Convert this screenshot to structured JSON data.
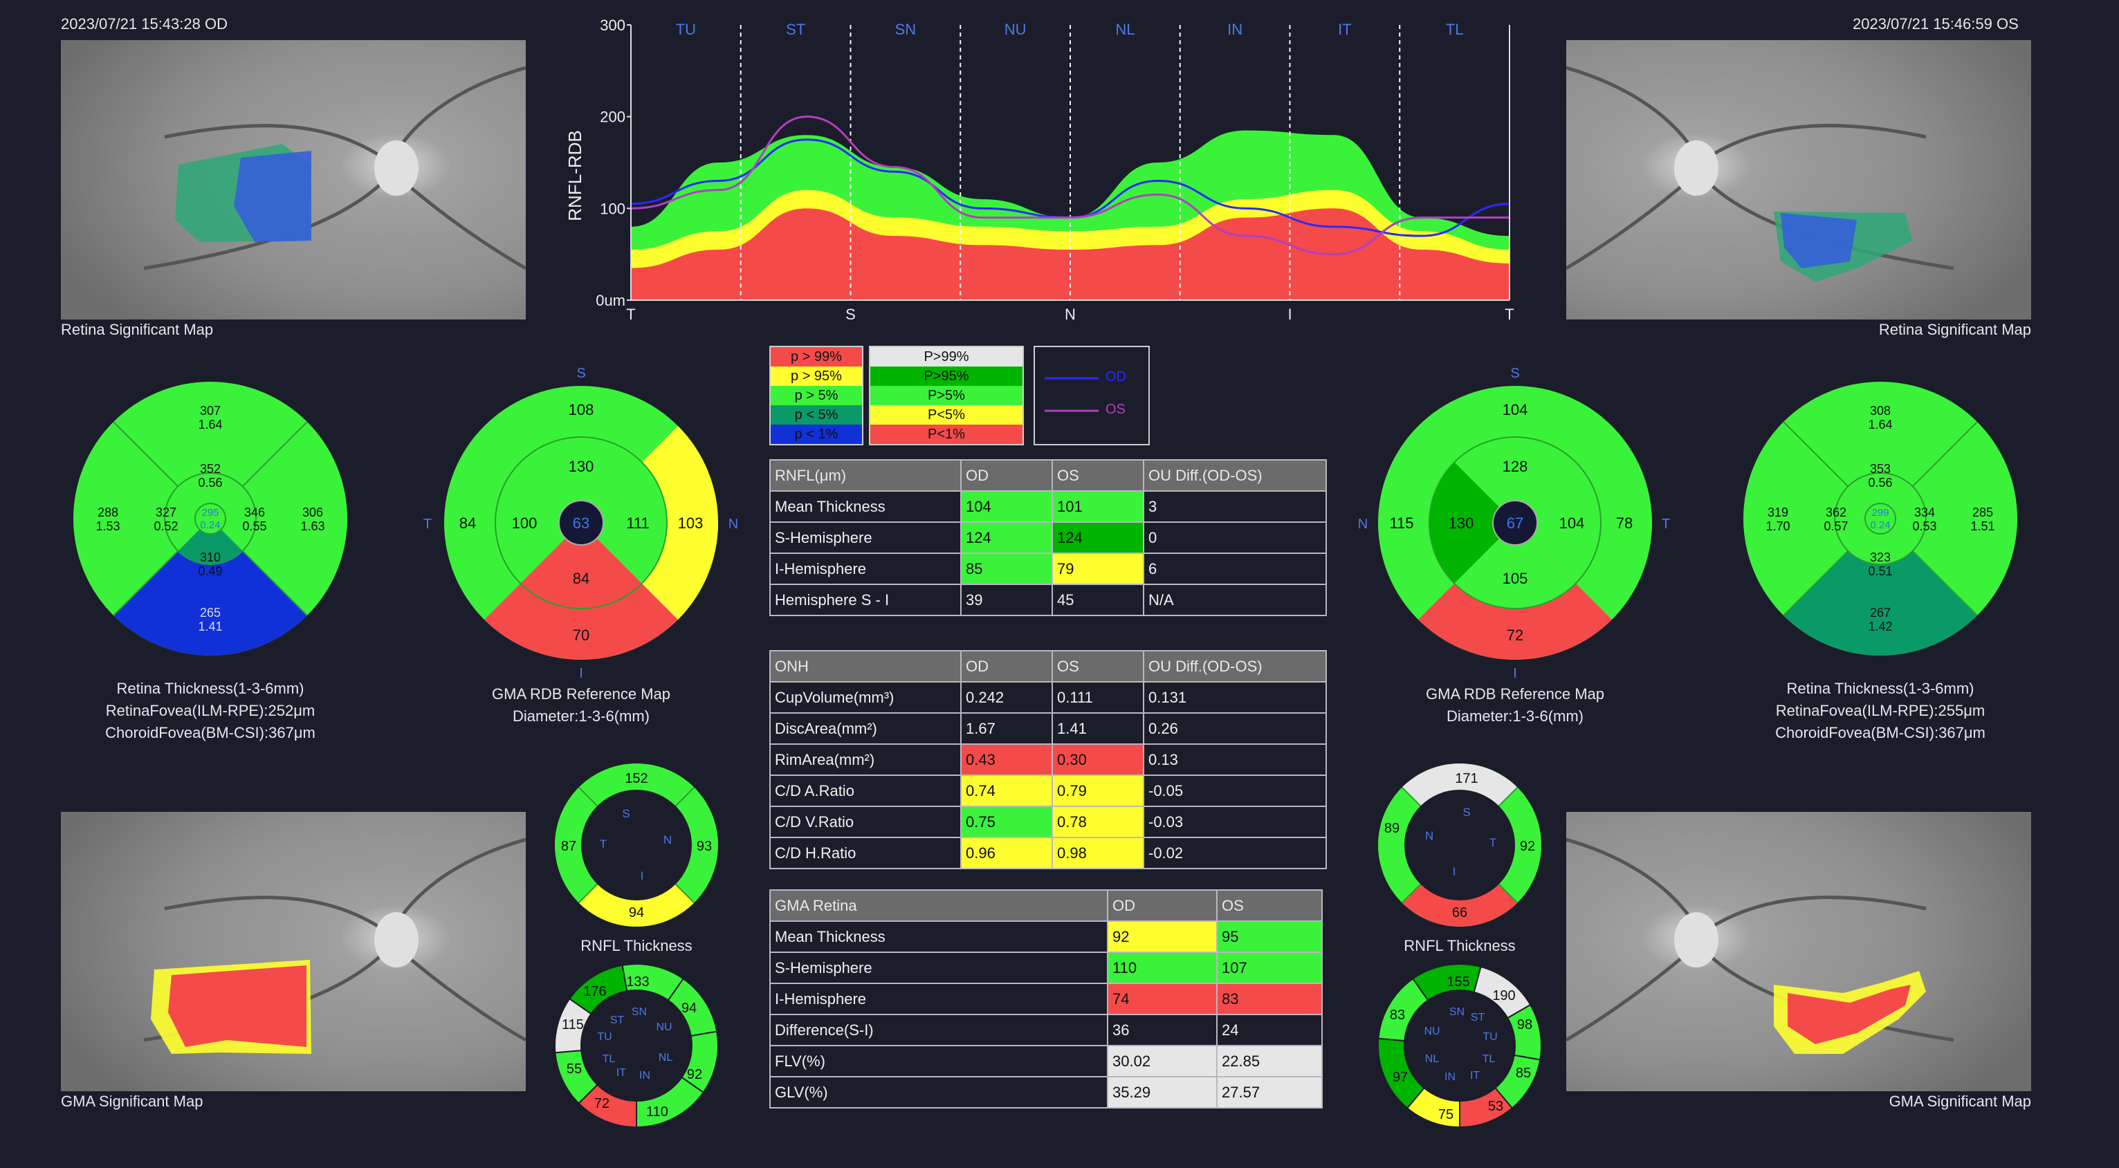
{
  "left": {
    "timestamp": "2023/07/21 15:43:28  OD",
    "retina_map_label": "Retina Significant Map",
    "gma_map_label": "GMA Significant Map",
    "retina_caption": [
      "Retina Thickness(1-3-6mm)",
      "RetinaFovea(ILM-RPE):252μm",
      "ChoroidFovea(BM-CSI):367μm"
    ],
    "gma_caption": [
      "GMA RDB Reference Map",
      "Diameter:1-3-6(mm)"
    ],
    "rnfl_label": "RNFL Thickness"
  },
  "right": {
    "timestamp": "2023/07/21 15:46:59  OS",
    "retina_map_label": "Retina Significant Map",
    "gma_map_label": "GMA Significant Map",
    "retina_caption": [
      "Retina Thickness(1-3-6mm)",
      "RetinaFovea(ILM-RPE):255μm",
      "ChoroidFovea(BM-CSI):367μm"
    ],
    "gma_caption": [
      "GMA RDB Reference Map",
      "Diameter:1-3-6(mm)"
    ],
    "rnfl_label": "RNFL Thickness"
  },
  "chart_data": {
    "type": "line",
    "ylabel": "RNFL-RDB",
    "ylim": [
      0,
      300
    ],
    "y_ticks": [
      "0um",
      "100",
      "200",
      "300"
    ],
    "sector_labels": [
      "TU",
      "ST",
      "SN",
      "NU",
      "NL",
      "IN",
      "IT",
      "TL"
    ],
    "x_ticks": [
      "T",
      "S",
      "N",
      "I",
      "T"
    ],
    "x": [
      0,
      10,
      20,
      30,
      40,
      50,
      60,
      70,
      80,
      90,
      100
    ],
    "bands": {
      "p1": [
        35,
        55,
        100,
        70,
        60,
        55,
        60,
        90,
        100,
        55,
        40
      ],
      "p5": [
        55,
        75,
        120,
        90,
        80,
        75,
        80,
        110,
        120,
        75,
        55
      ],
      "p95": [
        80,
        150,
        180,
        145,
        110,
        90,
        150,
        185,
        180,
        90,
        70
      ],
      "p99": [
        80,
        150,
        180,
        145,
        110,
        90,
        150,
        185,
        180,
        90,
        70
      ]
    },
    "series": [
      {
        "name": "OD",
        "color": "#2a2aff",
        "values": [
          105,
          130,
          175,
          140,
          100,
          90,
          130,
          100,
          80,
          70,
          105
        ]
      },
      {
        "name": "OS",
        "color": "#b040c0",
        "values": [
          100,
          120,
          200,
          145,
          90,
          90,
          115,
          70,
          50,
          90,
          90
        ]
      }
    ],
    "legend_p": [
      "p > 99%",
      "p > 95%",
      "p > 5%",
      "p < 5%",
      "p < 1%"
    ],
    "legend_P": [
      "P>99%",
      "P>95%",
      "P>5%",
      "P<5%",
      "P<1%"
    ],
    "legend_lines": [
      "OD",
      "OS"
    ]
  },
  "retina_od": {
    "outer": {
      "top": [
        "307",
        "1.64"
      ],
      "left": [
        "288",
        "1.53"
      ],
      "right": [
        "306",
        "1.63"
      ],
      "bottom": [
        "265",
        "1.41"
      ]
    },
    "inner": {
      "top": [
        "352",
        "0.56"
      ],
      "left": [
        "327",
        "0.52"
      ],
      "right": [
        "346",
        "0.55"
      ],
      "bottom": [
        "310",
        "0.49"
      ]
    },
    "center": [
      "295",
      "0.24"
    ]
  },
  "retina_os": {
    "outer": {
      "top": [
        "308",
        "1.64"
      ],
      "left": [
        "319",
        "1.70"
      ],
      "right": [
        "285",
        "1.51"
      ],
      "bottom": [
        "267",
        "1.42"
      ]
    },
    "inner": {
      "top": [
        "353",
        "0.56"
      ],
      "left": [
        "362",
        "0.57"
      ],
      "right": [
        "334",
        "0.53"
      ],
      "bottom": [
        "323",
        "0.51"
      ]
    },
    "center": [
      "299",
      "0.24"
    ]
  },
  "gma_od": {
    "dir": {
      "top": "S",
      "bottom": "I",
      "left": "T",
      "right": "N"
    },
    "outer": {
      "top": "108",
      "left": "84",
      "right": "103",
      "bottom": "70"
    },
    "inner": {
      "top": "130",
      "left": "100",
      "right": "111",
      "bottom": "84"
    },
    "center": "63"
  },
  "gma_os": {
    "dir": {
      "top": "S",
      "bottom": "I",
      "left": "N",
      "right": "T"
    },
    "outer": {
      "top": "104",
      "left": "115",
      "right": "78",
      "bottom": "72"
    },
    "inner": {
      "top": "128",
      "left": "130",
      "right": "104",
      "bottom": "105"
    },
    "center": "67"
  },
  "rnfl4_od": {
    "top": "152",
    "left": "87",
    "right": "93",
    "bottom": "94",
    "labels": [
      "S",
      "T",
      "N",
      "I"
    ]
  },
  "rnfl4_os": {
    "top": "171",
    "left": "89",
    "right": "92",
    "bottom": "66",
    "labels": [
      "S",
      "N",
      "T",
      "I"
    ]
  },
  "rnfl8_od": {
    "values": [
      "133",
      "94",
      "92",
      "110",
      "72",
      "55",
      "115",
      "176"
    ],
    "labels": [
      "SN",
      "NU",
      "NL",
      "IN",
      "IT",
      "TL",
      "TU",
      "ST"
    ]
  },
  "rnfl8_os": {
    "values": [
      "155",
      "190",
      "98",
      "85",
      "53",
      "75",
      "97",
      "83"
    ],
    "labels": [
      "SN",
      "ST",
      "TU",
      "TL",
      "IT",
      "IN",
      "NL",
      "NU"
    ]
  },
  "rnfl_table": {
    "headers": [
      "RNFL(μm)",
      "OD",
      "OS",
      "OU Diff.(OD-OS)"
    ],
    "rows": [
      [
        "Mean Thickness",
        "104",
        "101",
        "3"
      ],
      [
        "S-Hemisphere",
        "124",
        "124",
        "0"
      ],
      [
        "I-Hemisphere",
        "85",
        "79",
        "6"
      ],
      [
        "Hemisphere S - I",
        "39",
        "45",
        "N/A"
      ]
    ]
  },
  "onh_table": {
    "headers": [
      "ONH",
      "OD",
      "OS",
      "OU Diff.(OD-OS)"
    ],
    "rows": [
      [
        "CupVolume(mm³)",
        "0.242",
        "0.111",
        "0.131"
      ],
      [
        "DiscArea(mm²)",
        "1.67",
        "1.41",
        "0.26"
      ],
      [
        "RimArea(mm²)",
        "0.43",
        "0.30",
        "0.13"
      ],
      [
        "C/D A.Ratio",
        "0.74",
        "0.79",
        "-0.05"
      ],
      [
        "C/D V.Ratio",
        "0.75",
        "0.78",
        "-0.03"
      ],
      [
        "C/D H.Ratio",
        "0.96",
        "0.98",
        "-0.02"
      ]
    ]
  },
  "gma_table": {
    "headers": [
      "GMA Retina",
      "OD",
      "OS"
    ],
    "rows": [
      [
        "Mean Thickness",
        "92",
        "95"
      ],
      [
        "S-Hemisphere",
        "110",
        "107"
      ],
      [
        "I-Hemisphere",
        "74",
        "83"
      ],
      [
        "Difference(S-I)",
        "36",
        "24"
      ],
      [
        "FLV(%)",
        "30.02",
        "22.85"
      ],
      [
        "GLV(%)",
        "35.29",
        "27.57"
      ]
    ]
  },
  "colors": {
    "green": "#3bf23b",
    "dark_green": "#00b400",
    "yellow": "#ffff30",
    "red": "#f54a4a",
    "white": "#e6e6e6",
    "teal": "#0a9a68",
    "blue": "#1030d8",
    "background": "#1c1d2b"
  }
}
